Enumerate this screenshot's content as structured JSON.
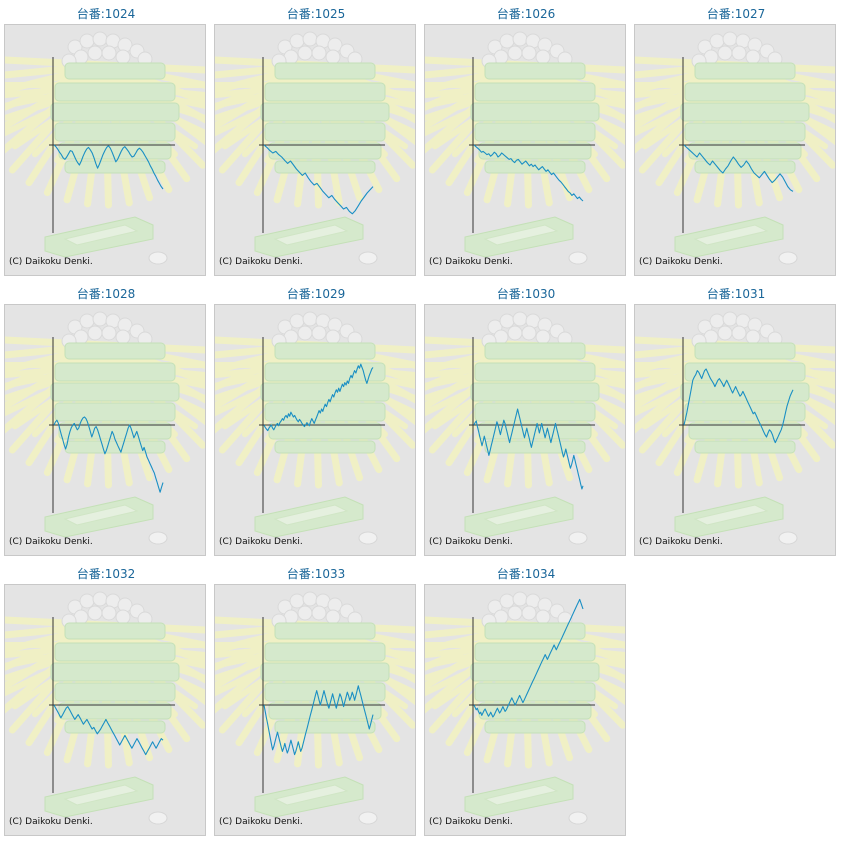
{
  "page": {
    "copyright": "(C) Daikoku Denki."
  },
  "colors": {
    "line": "#1a8fc4",
    "axis": "#333333",
    "title": "#1a6699",
    "background": "#e4e4e4",
    "watermark_green": "#d3ebc8",
    "watermark_rays": "#f3f3c0"
  },
  "watermark": {
    "description_icon": "slot-machine-bonus-icon"
  },
  "chart_data": [
    {
      "type": "line",
      "title": "台番:1024",
      "y": [
        0,
        -2,
        -5,
        -9,
        -12,
        -16,
        -18,
        -15,
        -11,
        -7,
        -8,
        -13,
        -18,
        -22,
        -25,
        -20,
        -14,
        -9,
        -5,
        -3,
        -6,
        -10,
        -16,
        -23,
        -29,
        -24,
        -18,
        -12,
        -7,
        -3,
        -1,
        -4,
        -9,
        -15,
        -21,
        -18,
        -13,
        -8,
        -4,
        -2,
        -5,
        -8,
        -12,
        -15,
        -14,
        -10,
        -6,
        -4,
        -6,
        -9,
        -13,
        -17,
        -21,
        -26,
        -30,
        -35,
        -39,
        -44,
        -48,
        -52,
        -55
      ]
    },
    {
      "type": "line",
      "title": "台番:1025",
      "y": [
        0,
        -3,
        -7,
        -10,
        -8,
        -12,
        -15,
        -19,
        -23,
        -20,
        -25,
        -30,
        -34,
        -38,
        -35,
        -41,
        -46,
        -50,
        -48,
        -53,
        -58,
        -62,
        -66,
        -63,
        -68,
        -72,
        -76,
        -80,
        -78,
        -83,
        -86,
        -82,
        -76,
        -70,
        -65,
        -60,
        -56,
        -52
      ]
    },
    {
      "type": "line",
      "title": "台番:1026",
      "y": [
        0,
        -2,
        -4,
        -6,
        -9,
        -8,
        -10,
        -12,
        -11,
        -14,
        -12,
        -9,
        -11,
        -15,
        -13,
        -10,
        -12,
        -14,
        -16,
        -18,
        -17,
        -20,
        -22,
        -19,
        -18,
        -21,
        -24,
        -22,
        -20,
        -23,
        -26,
        -24,
        -27,
        -25,
        -28,
        -31,
        -29,
        -27,
        -30,
        -33,
        -31,
        -34,
        -37,
        -35,
        -38,
        -41,
        -44,
        -46,
        -49,
        -52,
        -55,
        -58,
        -60,
        -63,
        -61,
        -64,
        -67,
        -65,
        -68,
        -70
      ]
    },
    {
      "type": "line",
      "title": "台番:1027",
      "y": [
        0,
        -3,
        -6,
        -9,
        -12,
        -15,
        -10,
        -14,
        -18,
        -22,
        -25,
        -20,
        -24,
        -28,
        -32,
        -35,
        -30,
        -26,
        -20,
        -15,
        -19,
        -24,
        -28,
        -25,
        -20,
        -24,
        -30,
        -35,
        -38,
        -41,
        -37,
        -33,
        -38,
        -43,
        -47,
        -44,
        -40,
        -36,
        -40,
        -46,
        -52,
        -56,
        -58
      ]
    },
    {
      "type": "line",
      "title": "台番:1028",
      "y": [
        0,
        4,
        6,
        2,
        -5,
        -12,
        -18,
        -25,
        -30,
        -24,
        -15,
        -8,
        -3,
        0,
        2,
        -2,
        -6,
        -4,
        2,
        6,
        9,
        10,
        8,
        4,
        -2,
        -8,
        -15,
        -10,
        -4,
        -2,
        -6,
        -12,
        -18,
        -24,
        -30,
        -36,
        -32,
        -26,
        -20,
        -14,
        -8,
        -12,
        -18,
        -22,
        -26,
        -30,
        -34,
        -28,
        -22,
        -16,
        -10,
        -4,
        0,
        -4,
        -10,
        -16,
        -12,
        -8,
        -14,
        -20,
        -26,
        -32,
        -28,
        -34,
        -40,
        -44,
        -48,
        -52,
        -56,
        -60,
        -66,
        -72,
        -78,
        -84,
        -78,
        -72
      ]
    },
    {
      "type": "line",
      "title": "台番:1029",
      "y": [
        0,
        -3,
        -5,
        -7,
        -4,
        -2,
        0,
        -4,
        -6,
        -3,
        0,
        2,
        -1,
        3,
        5,
        8,
        6,
        10,
        12,
        9,
        14,
        11,
        16,
        13,
        10,
        12,
        9,
        6,
        4,
        7,
        5,
        2,
        0,
        -2,
        0,
        3,
        1,
        -1,
        4,
        8,
        5,
        2,
        6,
        10,
        14,
        18,
        15,
        20,
        17,
        22,
        26,
        23,
        28,
        32,
        29,
        34,
        38,
        35,
        40,
        44,
        41,
        46,
        42,
        47,
        51,
        48,
        53,
        50,
        55,
        52,
        58,
        62,
        59,
        64,
        68,
        65,
        70,
        74,
        71,
        76,
        72,
        68,
        62,
        56,
        52,
        57,
        62,
        66,
        70,
        72
      ]
    },
    {
      "type": "line",
      "title": "台番:1030",
      "y": [
        0,
        3,
        5,
        -2,
        -8,
        -14,
        -20,
        -26,
        -20,
        -14,
        -20,
        -26,
        -32,
        -38,
        -32,
        -26,
        -20,
        -14,
        -8,
        -2,
        4,
        0,
        -6,
        -12,
        -6,
        0,
        6,
        2,
        -4,
        -10,
        -16,
        -22,
        -16,
        -10,
        -4,
        2,
        8,
        14,
        20,
        14,
        8,
        2,
        -4,
        -10,
        -16,
        -10,
        -4,
        -10,
        -16,
        -22,
        -28,
        -22,
        -16,
        -10,
        -4,
        2,
        -4,
        -10,
        -4,
        2,
        -4,
        -10,
        -16,
        -10,
        -4,
        -10,
        -16,
        -22,
        -16,
        -10,
        -4,
        2,
        -4,
        -10,
        -16,
        -22,
        -28,
        -34,
        -40,
        -36,
        -30,
        -36,
        -42,
        -48,
        -54,
        -50,
        -44,
        -38,
        -44,
        -50,
        -56,
        -62,
        -68,
        -74,
        -80,
        -76
      ]
    },
    {
      "type": "line",
      "title": "台番:1031",
      "y": [
        0,
        8,
        16,
        26,
        36,
        46,
        56,
        60,
        63,
        68,
        66,
        62,
        58,
        63,
        68,
        70,
        66,
        62,
        58,
        55,
        52,
        48,
        52,
        56,
        58,
        55,
        52,
        48,
        52,
        56,
        52,
        48,
        44,
        40,
        44,
        48,
        44,
        40,
        36,
        38,
        42,
        38,
        34,
        30,
        26,
        22,
        18,
        14,
        16,
        12,
        8,
        4,
        0,
        -4,
        -8,
        -12,
        -15,
        -10,
        -6,
        -8,
        -12,
        -18,
        -22,
        -18,
        -14,
        -10,
        -6,
        0,
        8,
        16,
        24,
        30,
        36,
        40,
        44
      ]
    },
    {
      "type": "line",
      "title": "台番:1032",
      "y": [
        0,
        -4,
        -8,
        -12,
        -16,
        -12,
        -8,
        -4,
        -2,
        -6,
        -10,
        -14,
        -18,
        -15,
        -12,
        -16,
        -20,
        -24,
        -21,
        -18,
        -22,
        -26,
        -30,
        -28,
        -32,
        -36,
        -33,
        -30,
        -26,
        -22,
        -18,
        -22,
        -26,
        -30,
        -34,
        -38,
        -42,
        -46,
        -50,
        -46,
        -42,
        -38,
        -42,
        -46,
        -50,
        -54,
        -50,
        -46,
        -42,
        -46,
        -50,
        -54,
        -58,
        -62,
        -58,
        -54,
        -50,
        -46,
        -50,
        -54,
        -50,
        -46,
        -42,
        -44
      ]
    },
    {
      "type": "line",
      "title": "台番:1033",
      "y": [
        0,
        -8,
        -16,
        -24,
        -32,
        -40,
        -48,
        -56,
        -52,
        -46,
        -40,
        -34,
        -40,
        -46,
        -52,
        -58,
        -54,
        -48,
        -54,
        -60,
        -56,
        -50,
        -44,
        -50,
        -56,
        -62,
        -58,
        -52,
        -46,
        -52,
        -58,
        -54,
        -48,
        -42,
        -36,
        -30,
        -24,
        -18,
        -12,
        -6,
        0,
        6,
        12,
        18,
        12,
        6,
        0,
        6,
        12,
        18,
        12,
        6,
        0,
        -4,
        2,
        8,
        14,
        8,
        2,
        -4,
        2,
        8,
        14,
        10,
        4,
        -2,
        4,
        10,
        16,
        12,
        6,
        10,
        16,
        12,
        6,
        12,
        18,
        24,
        18,
        12,
        6,
        0,
        -6,
        -12,
        -18,
        -24,
        -30,
        -24,
        -18,
        -12
      ]
    },
    {
      "type": "line",
      "title": "台番:1034",
      "y": [
        0,
        -3,
        -6,
        -4,
        -8,
        -11,
        -9,
        -13,
        -10,
        -7,
        -5,
        -8,
        -11,
        -14,
        -12,
        -9,
        -12,
        -15,
        -13,
        -10,
        -7,
        -4,
        -7,
        -10,
        -8,
        -5,
        -2,
        -5,
        -8,
        -6,
        -3,
        0,
        3,
        6,
        9,
        6,
        3,
        0,
        3,
        6,
        9,
        12,
        9,
        6,
        3,
        6,
        9,
        12,
        15,
        18,
        21,
        24,
        27,
        30,
        33,
        36,
        39,
        42,
        45,
        48,
        51,
        54,
        57,
        60,
        63,
        60,
        57,
        60,
        63,
        66,
        69,
        72,
        75,
        72,
        69,
        72,
        75,
        78,
        81,
        84,
        87,
        90,
        93,
        96,
        99,
        102,
        105,
        108,
        111,
        114,
        117,
        120,
        123,
        126,
        129,
        132,
        128,
        124,
        120
      ]
    }
  ]
}
